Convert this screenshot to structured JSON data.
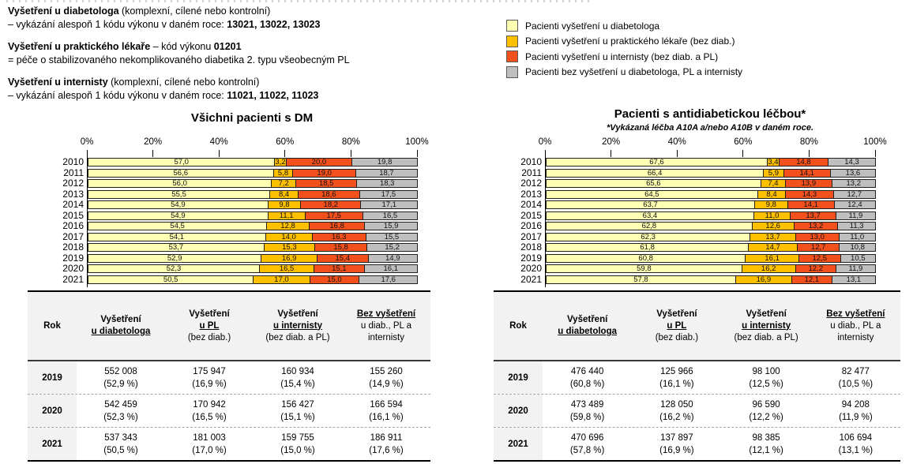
{
  "definitions": [
    {
      "segments": [
        {
          "t": "Vyšetření u diabetologa",
          "b": 1
        },
        {
          "t": " (komplexní, cílené nebo kontrolní)"
        },
        {
          "t": "\n– vykázání alespoň 1 kódu výkonu v daném roce: "
        },
        {
          "t": "13021,  13022,  13023",
          "b": 1
        }
      ]
    },
    {
      "segments": [
        {
          "t": "Vyšetření u praktického lékaře",
          "b": 1
        },
        {
          "t": " – kód výkonu "
        },
        {
          "t": "01201",
          "b": 1
        },
        {
          "t": "\n= péče o stabilizovaného nekomplikovaného diabetika 2. typu všeobecným PL"
        }
      ]
    },
    {
      "segments": [
        {
          "t": "Vyšetření u internisty",
          "b": 1
        },
        {
          "t": " (komplexní, cílené nebo kontrolní)"
        },
        {
          "t": "\n– vykázání alespoň 1 kódu výkonu v daném roce: "
        },
        {
          "t": "11021,  11022,  11023",
          "b": 1
        }
      ]
    }
  ],
  "legend": {
    "items": [
      {
        "label": "Pacienti vyšetření u diabetologa",
        "color": "#FFFFB3"
      },
      {
        "label": "Pacienti vyšetření u praktického lékaře (bez diab.)",
        "color": "#FFC000"
      },
      {
        "label": "Pacienti vyšetření u internisty (bez diab. a PL)",
        "color": "#F2501D"
      },
      {
        "label": "Pacienti bez vyšetření u diabetologa, PL a internisty",
        "color": "#BFBFBF"
      }
    ]
  },
  "chart_data": [
    {
      "type": "bar",
      "orientation": "horizontal",
      "stacked": true,
      "title": "Všichni pacienti s DM",
      "subtitle": "",
      "xlim": [
        0,
        100
      ],
      "x_ticks": [
        "0%",
        "20%",
        "40%",
        "60%",
        "80%",
        "100%"
      ],
      "legend_position": "top-right-of-page",
      "categories": [
        "2010",
        "2011",
        "2012",
        "2013",
        "2014",
        "2015",
        "2016",
        "2017",
        "2018",
        "2019",
        "2020",
        "2021"
      ],
      "series": [
        {
          "name": "Pacienti vyšetření u diabetologa",
          "color": "#FFFFB3",
          "values": [
            57.0,
            56.6,
            56.0,
            55.5,
            54.9,
            54.9,
            54.5,
            54.1,
            53.7,
            52.9,
            52.3,
            50.5
          ],
          "labels": [
            "57,0",
            "56,6",
            "56,0",
            "55,5",
            "54,9",
            "54,9",
            "54,5",
            "54,1",
            "53,7",
            "52,9",
            "52,3",
            "50,5"
          ]
        },
        {
          "name": "Pacienti vyšetření u praktického lékaře (bez diab.)",
          "color": "#FFC000",
          "values": [
            3.2,
            5.8,
            7.2,
            8.4,
            9.8,
            11.1,
            12.8,
            14.0,
            15.3,
            16.9,
            16.5,
            17.0
          ],
          "labels": [
            "3,2",
            "5,8",
            "7,2",
            "8,4",
            "9,8",
            "11,1",
            "12,8",
            "14,0",
            "15,3",
            "16,9",
            "16,5",
            "17,0"
          ]
        },
        {
          "name": "Pacienti vyšetření u internisty (bez diab. a PL)",
          "color": "#F2501D",
          "values": [
            20.0,
            19.0,
            18.5,
            18.6,
            18.2,
            17.5,
            16.8,
            16.3,
            15.8,
            15.4,
            15.1,
            15.0
          ],
          "labels": [
            "20,0",
            "19,0",
            "18,5",
            "18,6",
            "18,2",
            "17,5",
            "16,8",
            "16,3",
            "15,8",
            "15,4",
            "15,1",
            "15,0"
          ]
        },
        {
          "name": "Pacienti bez vyšetření u diabetologa, PL a internisty",
          "color": "#BFBFBF",
          "values": [
            19.8,
            18.7,
            18.3,
            17.5,
            17.1,
            16.5,
            15.9,
            15.5,
            15.2,
            14.9,
            16.1,
            17.6
          ],
          "labels": [
            "19,8",
            "18,7",
            "18,3",
            "17,5",
            "17,1",
            "16,5",
            "15,9",
            "15,5",
            "15,2",
            "14,9",
            "16,1",
            "17,6"
          ]
        }
      ]
    },
    {
      "type": "bar",
      "orientation": "horizontal",
      "stacked": true,
      "title": "Pacienti s antidiabetickou léčbou*",
      "subtitle": "*Vykázaná léčba A10A a/nebo A10B v daném roce.",
      "xlim": [
        0,
        100
      ],
      "x_ticks": [
        "0%",
        "20%",
        "40%",
        "60%",
        "80%",
        "100%"
      ],
      "categories": [
        "2010",
        "2011",
        "2012",
        "2013",
        "2014",
        "2015",
        "2016",
        "2017",
        "2018",
        "2019",
        "2020",
        "2021"
      ],
      "series": [
        {
          "name": "Pacienti vyšetření u diabetologa",
          "color": "#FFFFB3",
          "values": [
            67.6,
            66.4,
            65.6,
            64.5,
            63.7,
            63.4,
            62.8,
            62.3,
            61.8,
            60.8,
            59.8,
            57.8
          ],
          "labels": [
            "67,6",
            "66,4",
            "65,6",
            "64,5",
            "63,7",
            "63,4",
            "62,8",
            "62,3",
            "61,8",
            "60,8",
            "59,8",
            "57,8"
          ]
        },
        {
          "name": "Pacienti vyšetření u praktického lékaře (bez diab.)",
          "color": "#FFC000",
          "values": [
            3.4,
            5.9,
            7.4,
            8.4,
            9.8,
            11.0,
            12.6,
            13.7,
            14.7,
            16.1,
            16.2,
            16.9
          ],
          "labels": [
            "3,4",
            "5,9",
            "7,4",
            "8,4",
            "9,8",
            "11,0",
            "12,6",
            "13,7",
            "14,7",
            "16,1",
            "16,2",
            "16,9"
          ]
        },
        {
          "name": "Pacienti vyšetření u internisty (bez diab. a PL)",
          "color": "#F2501D",
          "values": [
            14.8,
            14.1,
            13.9,
            14.3,
            14.1,
            13.7,
            13.2,
            13.0,
            12.7,
            12.5,
            12.2,
            12.1
          ],
          "labels": [
            "14,8",
            "14,1",
            "13,9",
            "14,3",
            "14,1",
            "13,7",
            "13,2",
            "13,0",
            "12,7",
            "12,5",
            "12,2",
            "12,1"
          ]
        },
        {
          "name": "Pacienti bez vyšetření u diabetologa, PL a internisty",
          "color": "#BFBFBF",
          "values": [
            14.3,
            13.6,
            13.2,
            12.7,
            12.4,
            11.9,
            11.3,
            11.0,
            10.8,
            10.5,
            11.9,
            13.1
          ],
          "labels": [
            "14,3",
            "13,6",
            "13,2",
            "12,7",
            "12,4",
            "11,9",
            "11,3",
            "11,0",
            "10,8",
            "10,5",
            "11,9",
            "13,1"
          ]
        }
      ]
    }
  ],
  "tables": [
    {
      "headers": {
        "rok": "Rok",
        "cols": [
          {
            "lines": [
              {
                "t": "Vyšetření",
                "b": 1
              },
              {
                "t": "u diabetologa",
                "b": 1,
                "u": 1
              }
            ]
          },
          {
            "lines": [
              {
                "t": "Vyšetření",
                "b": 1
              },
              {
                "t": "u PL",
                "b": 1,
                "u": 1
              },
              {
                "t": "(bez diab.)"
              }
            ]
          },
          {
            "lines": [
              {
                "t": "Vyšetření",
                "b": 1
              },
              {
                "t": "u internisty",
                "b": 1,
                "u": 1
              },
              {
                "t": "(bez diab. a PL)"
              }
            ]
          },
          {
            "lines": [
              {
                "t": "Bez vyšetření",
                "b": 1,
                "u": 1
              },
              {
                "t": "u diab., PL a internisty"
              }
            ]
          }
        ]
      },
      "rows": [
        {
          "rok": "2019",
          "cells": [
            [
              "552 008",
              "(52,9 %)"
            ],
            [
              "175 947",
              "(16,9 %)"
            ],
            [
              "160 934",
              "(15,4 %)"
            ],
            [
              "155 260",
              "(14,9 %)"
            ]
          ]
        },
        {
          "rok": "2020",
          "cells": [
            [
              "542 459",
              "(52,3 %)"
            ],
            [
              "170 942",
              "(16,5 %)"
            ],
            [
              "156 427",
              "(15,1 %)"
            ],
            [
              "166 594",
              "(16,1 %)"
            ]
          ]
        },
        {
          "rok": "2021",
          "cells": [
            [
              "537 343",
              "(50,5 %)"
            ],
            [
              "181 003",
              "(17,0 %)"
            ],
            [
              "159 755",
              "(15,0 %)"
            ],
            [
              "186 911",
              "(17,6 %)"
            ]
          ]
        }
      ]
    },
    {
      "headers": {
        "rok": "Rok",
        "cols": [
          {
            "lines": [
              {
                "t": "Vyšetření",
                "b": 1
              },
              {
                "t": "u diabetologa",
                "b": 1,
                "u": 1
              }
            ]
          },
          {
            "lines": [
              {
                "t": "Vyšetření",
                "b": 1
              },
              {
                "t": "u PL",
                "b": 1,
                "u": 1
              },
              {
                "t": "(bez diab.)"
              }
            ]
          },
          {
            "lines": [
              {
                "t": "Vyšetření",
                "b": 1
              },
              {
                "t": "u internisty",
                "b": 1,
                "u": 1
              },
              {
                "t": "(bez diab. a PL)"
              }
            ]
          },
          {
            "lines": [
              {
                "t": "Bez vyšetření",
                "b": 1,
                "u": 1
              },
              {
                "t": "u diab., PL a internisty"
              }
            ]
          }
        ]
      },
      "rows": [
        {
          "rok": "2019",
          "cells": [
            [
              "476 440",
              "(60,8 %)"
            ],
            [
              "125 966",
              "(16,1 %)"
            ],
            [
              "98 100",
              "(12,5 %)"
            ],
            [
              "82 477",
              "(10,5 %)"
            ]
          ]
        },
        {
          "rok": "2020",
          "cells": [
            [
              "473 489",
              "(59,8 %)"
            ],
            [
              "128 050",
              "(16,2 %)"
            ],
            [
              "96 590",
              "(12,2 %)"
            ],
            [
              "94 208",
              "(11,9 %)"
            ]
          ]
        },
        {
          "rok": "2021",
          "cells": [
            [
              "470 696",
              "(57,8 %)"
            ],
            [
              "137 897",
              "(16,9 %)"
            ],
            [
              "98 385",
              "(12,1 %)"
            ],
            [
              "106 694",
              "(13,1 %)"
            ]
          ]
        }
      ]
    }
  ]
}
